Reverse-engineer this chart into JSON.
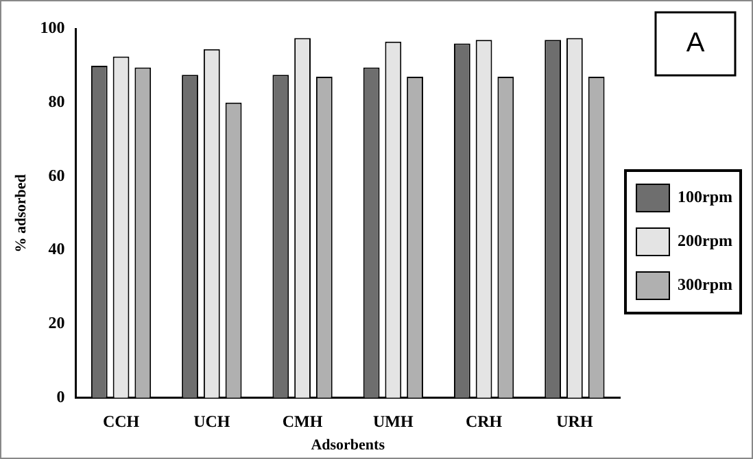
{
  "chart_data": {
    "type": "bar",
    "xlabel": "Adsorbents",
    "ylabel": "% adsorbed",
    "categories": [
      "CCH",
      "UCH",
      "CMH",
      "UMH",
      "CRH",
      "URH"
    ],
    "series": [
      {
        "name": "100rpm",
        "color": "#6e6e6e",
        "values": [
          90,
          87.5,
          87.5,
          89.5,
          96,
          97
        ]
      },
      {
        "name": "200rpm",
        "color": "#e4e4e4",
        "values": [
          92.5,
          94.5,
          97.5,
          96.5,
          97,
          97.5
        ]
      },
      {
        "name": "300rpm",
        "color": "#b0b0b0",
        "values": [
          89.5,
          80,
          87,
          87,
          87,
          87
        ]
      }
    ],
    "ylim": [
      0,
      100
    ],
    "yticks": [
      0,
      20,
      40,
      60,
      80,
      100
    ],
    "grid": false,
    "legend": "right",
    "annotations": [
      "A"
    ]
  }
}
